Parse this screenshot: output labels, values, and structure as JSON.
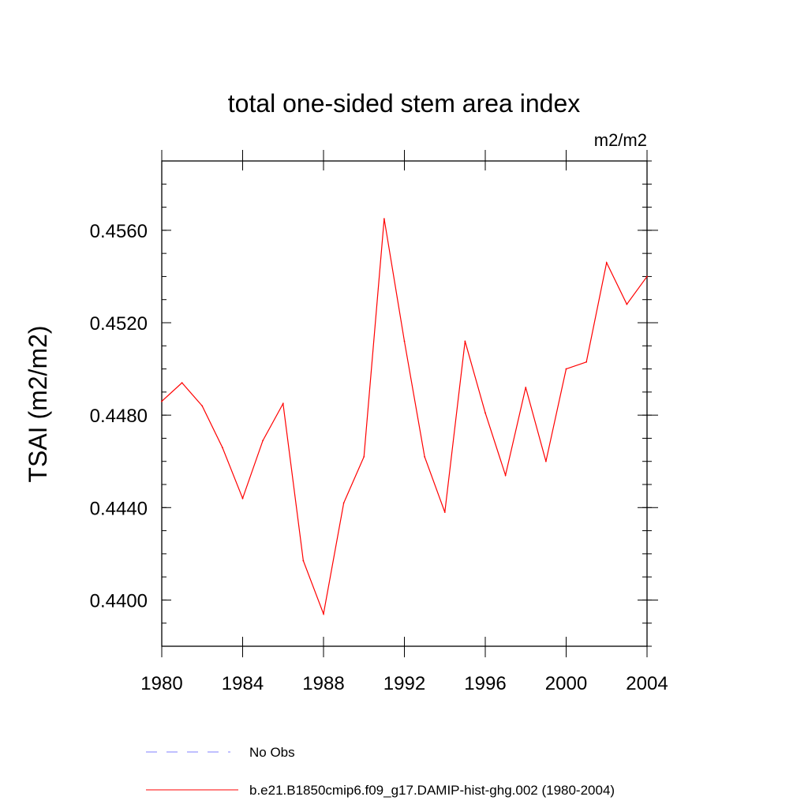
{
  "chart_data": {
    "type": "line",
    "title": "total one-sided stem area index",
    "units": "m2/m2",
    "xlabel": "",
    "ylabel": "TSAI  (m2/m2)",
    "xlim": [
      1980,
      2004
    ],
    "ylim": [
      0.438,
      0.459
    ],
    "x_ticks": [
      1980,
      1984,
      1988,
      1992,
      1996,
      2000,
      2004
    ],
    "x_tick_labels": [
      "1980",
      "1984",
      "1988",
      "1992",
      "1996",
      "2000",
      "2004"
    ],
    "y_ticks": [
      0.44,
      0.444,
      0.448,
      0.452,
      0.456
    ],
    "y_tick_labels": [
      "0.4400",
      "0.4440",
      "0.4480",
      "0.4520",
      "0.4560"
    ],
    "grid": false,
    "legend_position": "bottom",
    "series": [
      {
        "name": "No Obs",
        "color": "#8080ff",
        "dash": "dashed",
        "x": [],
        "y": []
      },
      {
        "name": "b.e21.B1850cmip6.f09_g17.DAMIP-hist-ghg.002 (1980-2004)",
        "color": "#ff0000",
        "dash": "solid",
        "x": [
          1980,
          1981,
          1982,
          1983,
          1984,
          1985,
          1986,
          1987,
          1988,
          1989,
          1990,
          1991,
          1992,
          1993,
          1994,
          1995,
          1996,
          1997,
          1998,
          1999,
          2000,
          2001,
          2002,
          2003,
          2004
        ],
        "y": [
          0.4486,
          0.4494,
          0.4484,
          0.4466,
          0.4444,
          0.4469,
          0.4485,
          0.4417,
          0.4394,
          0.4442,
          0.4462,
          0.4565,
          0.4512,
          0.4462,
          0.4438,
          0.4512,
          0.4481,
          0.4454,
          0.4492,
          0.446,
          0.45,
          0.4503,
          0.4546,
          0.4528,
          0.454
        ]
      }
    ]
  }
}
